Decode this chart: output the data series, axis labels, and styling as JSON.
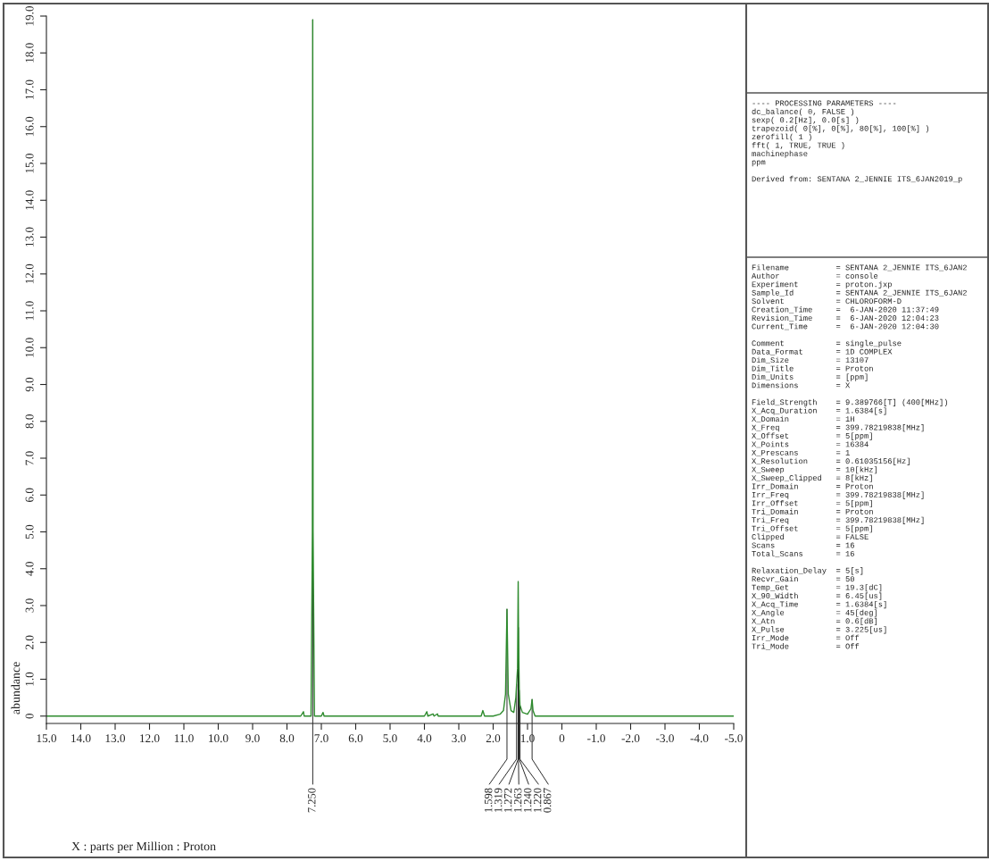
{
  "chart_data": {
    "type": "line",
    "ylabel": "abundance",
    "x": [
      15.0,
      7.6,
      7.52,
      7.5,
      7.3,
      7.26,
      7.25,
      7.24,
      7.2,
      7.0,
      6.95,
      6.92,
      4.0,
      3.93,
      3.9,
      3.75,
      3.72,
      3.62,
      3.6,
      2.35,
      2.3,
      2.25,
      2.0,
      1.8,
      1.7,
      1.64,
      1.598,
      1.56,
      1.48,
      1.4,
      1.34,
      1.319,
      1.29,
      1.272,
      1.263,
      1.24,
      1.22,
      1.15,
      1.0,
      0.9,
      0.867,
      0.84,
      0.78,
      -5.0
    ],
    "series": [
      {
        "color": "#2e8b2e",
        "values": [
          0,
          0,
          0.12,
          0,
          0,
          5,
          18.9,
          5,
          0,
          0,
          0.1,
          0,
          0,
          0.12,
          0,
          0.06,
          0,
          0.06,
          0,
          0,
          0.15,
          0,
          0,
          0.05,
          0.15,
          0.6,
          2.9,
          0.6,
          0.15,
          0.1,
          0.5,
          0.85,
          1.3,
          3.65,
          2.4,
          0.7,
          0.3,
          0.1,
          0.05,
          0.2,
          0.45,
          0.15,
          0,
          0
        ]
      }
    ],
    "xlim": [
      15.0,
      -5.0
    ],
    "ylim": [
      -0.2,
      19.0
    ],
    "xticks": [
      {
        "value": 15,
        "label": "15.0"
      },
      {
        "value": 14,
        "label": "14.0"
      },
      {
        "value": 13,
        "label": "13.0"
      },
      {
        "value": 12,
        "label": "12.0"
      },
      {
        "value": 11,
        "label": "11.0"
      },
      {
        "value": 10,
        "label": "10.0"
      },
      {
        "value": 9,
        "label": "9.0"
      },
      {
        "value": 8,
        "label": "8.0"
      },
      {
        "value": 7,
        "label": "7.0"
      },
      {
        "value": 6,
        "label": "6.0"
      },
      {
        "value": 5,
        "label": "5.0"
      },
      {
        "value": 4,
        "label": "4.0"
      },
      {
        "value": 3,
        "label": "3.0"
      },
      {
        "value": 2,
        "label": "2.0"
      },
      {
        "value": 1,
        "label": "1.0"
      },
      0,
      {
        "value": -1,
        "label": "-1.0"
      },
      {
        "value": -2,
        "label": "-2.0"
      },
      {
        "value": -3,
        "label": "-3.0"
      },
      {
        "value": -4,
        "label": "-4.0"
      },
      {
        "value": -5,
        "label": "-5.0"
      }
    ],
    "yticks": [
      0,
      {
        "value": 1,
        "label": "1.0"
      },
      {
        "value": 2,
        "label": "2.0"
      },
      {
        "value": 3,
        "label": "3.0"
      },
      {
        "value": 4,
        "label": "4.0"
      },
      {
        "value": 5,
        "label": "5.0"
      },
      {
        "value": 6,
        "label": "6.0"
      },
      {
        "value": 7,
        "label": "7.0"
      },
      {
        "value": 8,
        "label": "8.0"
      },
      {
        "value": 9,
        "label": "9.0"
      },
      {
        "value": 10,
        "label": "10.0"
      },
      {
        "value": 11,
        "label": "11.0"
      },
      {
        "value": 12,
        "label": "12.0"
      },
      {
        "value": 13,
        "label": "13.0"
      },
      {
        "value": 14,
        "label": "14.0"
      },
      {
        "value": 15,
        "label": "15.0"
      },
      {
        "value": 16,
        "label": "16.0"
      },
      {
        "value": 17,
        "label": "17.0"
      },
      {
        "value": 18,
        "label": "18.0"
      },
      {
        "value": 19,
        "label": "19.0"
      }
    ],
    "grid": false,
    "legend": false,
    "marker": "none",
    "line_style": "solid",
    "annotations": [
      {
        "text": "7.250",
        "x": 7.25,
        "y": 18.9
      },
      {
        "text": "1.598",
        "x": 1.598,
        "y": 2.9
      },
      {
        "text": "1.319",
        "x": 1.319,
        "y": 0.85
      },
      {
        "text": "1.272",
        "x": 1.272,
        "y": 3.65
      },
      {
        "text": "1.263",
        "x": 1.263,
        "y": 2.4
      },
      {
        "text": "1.240",
        "x": 1.24,
        "y": 0.7
      },
      {
        "text": "1.220",
        "x": 1.22,
        "y": 0.3
      },
      {
        "text": "0.867",
        "x": 0.867,
        "y": 0.45
      },
      "X : parts per Million : Proton",
      "---- PROCESSING PARAMETERS ----\ndc_balance( 0, FALSE )\nsexp( 0.2[Hz], 0.0[s] )\ntrapezoid( 0[%], 0[%], 80[%], 100[%] )\nzerofill( 1 )\nfft( 1, TRUE, TRUE )\nmachinephase\nppm\n\nDerived from: SENTANA 2_JENNIE ITS_6JAN2019_p",
      "Filename          = SENTANA 2_JENNIE ITS_6JAN2\nAuthor            = console\nExperiment        = proton.jxp\nSample_Id         = SENTANA 2_JENNIE ITS_6JAN2\nSolvent           = CHLOROFORM-D\nCreation_Time     =  6-JAN-2020 11:37:49\nRevision_Time     =  6-JAN-2020 12:04:23\nCurrent_Time      =  6-JAN-2020 12:04:30\n\nComment           = single_pulse\nData_Format       = 1D COMPLEX\nDim_Size          = 13107\nDim_Title         = Proton\nDim_Units         = [ppm]\nDimensions        = X\n\nField_Strength    = 9.389766[T] (400[MHz])\nX_Acq_Duration    = 1.6384[s]\nX_Domain          = 1H\nX_Freq            = 399.78219838[MHz]\nX_Offset          = 5[ppm]\nX_Points          = 16384\nX_Prescans        = 1\nX_Resolution      = 0.61035156[Hz]\nX_Sweep           = 10[kHz]\nX_Sweep_Clipped   = 8[kHz]\nIrr_Domain        = Proton\nIrr_Freq          = 399.78219838[MHz]\nIrr_Offset        = 5[ppm]\nTri_Domain        = Proton\nTri_Freq          = 399.78219838[MHz]\nTri_Offset        = 5[ppm]\nClipped           = FALSE\nScans             = 16\nTotal_Scans       = 16\n\nRelaxation_Delay  = 5[s]\nRecvr_Gain        = 50\nTemp_Get          = 19.3[dC]\nX_90_Width        = 6.45[us]\nX_Acq_Time        = 1.6384[s]\nX_Angle           = 45[deg]\nX_Atn             = 0.6[dB]\nX_Pulse           = 3.225[us]\nIrr_Mode          = Off\nTri_Mode          = Off"
    ]
  }
}
